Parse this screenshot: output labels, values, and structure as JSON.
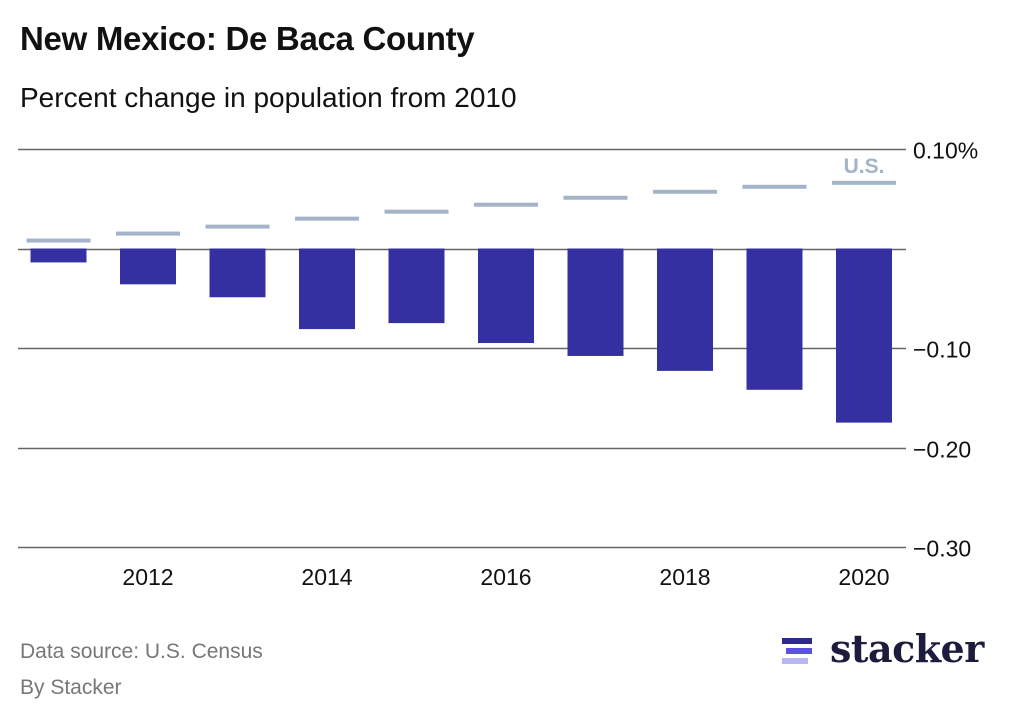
{
  "header": {
    "title": "New Mexico: De Baca County",
    "subtitle": "Percent change in population from 2010"
  },
  "footer": {
    "source": "Data source: U.S. Census",
    "byline": "By Stacker",
    "logo_text": "stacker"
  },
  "colors": {
    "bar": "#3430a1",
    "us_marker": "#a3b4c9",
    "grid": "#666666",
    "logo_dark": "#2e2a8c",
    "logo_mid": "#5b55d6",
    "logo_light": "#b9b6f0"
  },
  "chart_data": {
    "type": "bar",
    "title": "New Mexico: De Baca County",
    "subtitle": "Percent change in population from 2010",
    "xlabel": "",
    "ylabel": "",
    "categories": [
      "2011",
      "2012",
      "2013",
      "2014",
      "2015",
      "2016",
      "2017",
      "2018",
      "2019",
      "2020"
    ],
    "series": [
      {
        "name": "De Baca County",
        "kind": "bar",
        "values": [
          -0.014,
          -0.036,
          -0.049,
          -0.081,
          -0.075,
          -0.095,
          -0.108,
          -0.123,
          -0.142,
          -0.175
        ]
      },
      {
        "name": "U.S.",
        "kind": "marker",
        "values": [
          0.008,
          0.015,
          0.022,
          0.03,
          0.037,
          0.044,
          0.051,
          0.057,
          0.062,
          0.066
        ]
      }
    ],
    "series_label": "U.S.",
    "ylim": [
      -0.3,
      0.1
    ],
    "yticks": [
      0.1,
      0.0,
      -0.1,
      -0.2,
      -0.3
    ],
    "ytick_labels": [
      "0.10%",
      "",
      "−0.10",
      "−0.20",
      "−0.30"
    ],
    "xtick_labels": [
      "2012",
      "2014",
      "2016",
      "2018",
      "2020"
    ],
    "grid": true,
    "axis_side": "right",
    "legend": "inline-label-top-right"
  }
}
